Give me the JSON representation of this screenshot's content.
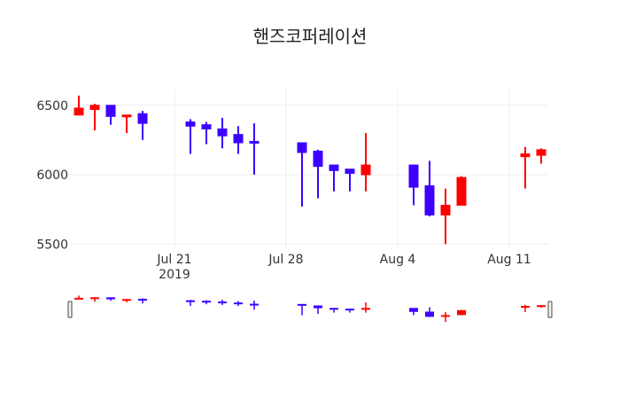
{
  "chart_data": {
    "type": "candlestick",
    "title": "핸즈코퍼레이션",
    "y_ticks": [
      5500,
      6000,
      6500
    ],
    "ylim": [
      5470,
      6620
    ],
    "x_ticks": [
      {
        "date": "2019-07-21",
        "label": "Jul 21",
        "sublabel": "2019"
      },
      {
        "date": "2019-07-28",
        "label": "Jul 28",
        "sublabel": ""
      },
      {
        "date": "2019-08-04",
        "label": "Aug 4",
        "sublabel": ""
      },
      {
        "date": "2019-08-11",
        "label": "Aug 11",
        "sublabel": ""
      }
    ],
    "xlim": [
      "2019-07-14T12:00",
      "2019-08-13T12:00"
    ],
    "up_color": "#ff0000",
    "down_color": "#3d00ff",
    "grid": true,
    "rangeslider": true,
    "candles": [
      {
        "date": "2019-07-15",
        "open": 6430,
        "high": 6570,
        "low": 6430,
        "close": 6480
      },
      {
        "date": "2019-07-16",
        "open": 6470,
        "high": 6510,
        "low": 6320,
        "close": 6500
      },
      {
        "date": "2019-07-17",
        "open": 6500,
        "high": 6500,
        "low": 6360,
        "close": 6420
      },
      {
        "date": "2019-07-18",
        "open": 6420,
        "high": 6430,
        "low": 6300,
        "close": 6430
      },
      {
        "date": "2019-07-19",
        "open": 6440,
        "high": 6460,
        "low": 6250,
        "close": 6370
      },
      {
        "date": "2019-07-22",
        "open": 6380,
        "high": 6400,
        "low": 6150,
        "close": 6350
      },
      {
        "date": "2019-07-23",
        "open": 6360,
        "high": 6380,
        "low": 6220,
        "close": 6330
      },
      {
        "date": "2019-07-24",
        "open": 6330,
        "high": 6410,
        "low": 6190,
        "close": 6280
      },
      {
        "date": "2019-07-25",
        "open": 6290,
        "high": 6350,
        "low": 6150,
        "close": 6230
      },
      {
        "date": "2019-07-26",
        "open": 6240,
        "high": 6370,
        "low": 6000,
        "close": 6230
      },
      {
        "date": "2019-07-29",
        "open": 6230,
        "high": 6230,
        "low": 5770,
        "close": 6160
      },
      {
        "date": "2019-07-30",
        "open": 6170,
        "high": 6180,
        "low": 5830,
        "close": 6060
      },
      {
        "date": "2019-07-31",
        "open": 6070,
        "high": 6070,
        "low": 5880,
        "close": 6030
      },
      {
        "date": "2019-08-01",
        "open": 6040,
        "high": 6040,
        "low": 5880,
        "close": 6010
      },
      {
        "date": "2019-08-02",
        "open": 6000,
        "high": 6300,
        "low": 5880,
        "close": 6070
      },
      {
        "date": "2019-08-05",
        "open": 6070,
        "high": 6070,
        "low": 5780,
        "close": 5910
      },
      {
        "date": "2019-08-06",
        "open": 5920,
        "high": 6100,
        "low": 5700,
        "close": 5710
      },
      {
        "date": "2019-08-07",
        "open": 5710,
        "high": 5900,
        "low": 5500,
        "close": 5780
      },
      {
        "date": "2019-08-08",
        "open": 5780,
        "high": 5990,
        "low": 5780,
        "close": 5980
      },
      {
        "date": "2019-08-12",
        "open": 6130,
        "high": 6200,
        "low": 5900,
        "close": 6150
      },
      {
        "date": "2019-08-13",
        "open": 6140,
        "high": 6190,
        "low": 6080,
        "close": 6180
      }
    ]
  }
}
